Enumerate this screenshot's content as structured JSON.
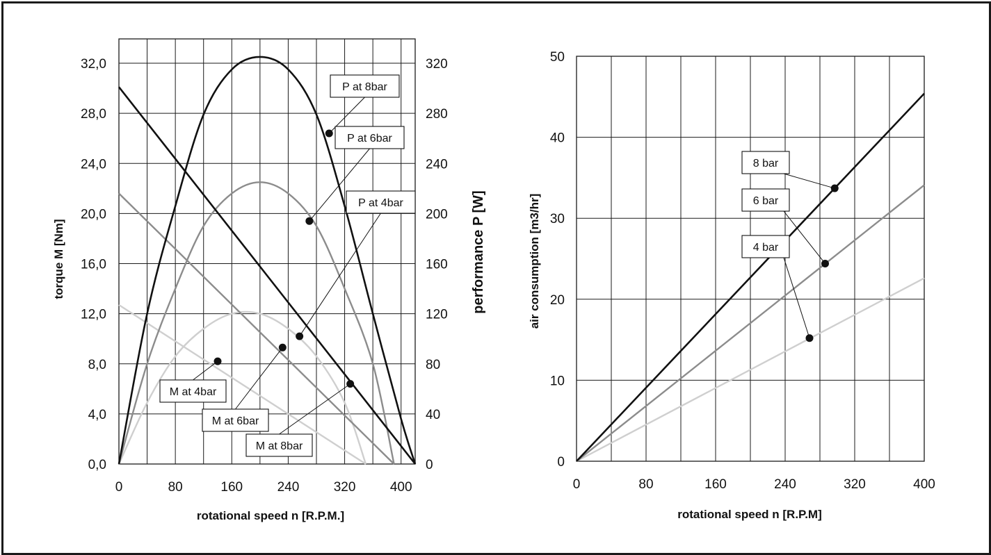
{
  "colors": {
    "black": "#111111",
    "mid_gray": "#8c8c8c",
    "light_gray": "#cfcfcf",
    "grid": "#1a1a1a"
  },
  "chart_data": [
    {
      "type": "line",
      "xlabel": "rotational speed n [R.P.M.]",
      "ylabel": "torque M [Nm]",
      "y2label": "performance P [W]",
      "xlim": [
        0,
        420
      ],
      "ylim": [
        0,
        32
      ],
      "y2lim": [
        0,
        320
      ],
      "x_ticks": [
        "0",
        "80",
        "160",
        "240",
        "320",
        "400"
      ],
      "y_ticks": [
        "0,0",
        "4,0",
        "8,0",
        "12,0",
        "16,0",
        "20,0",
        "24,0",
        "28,0",
        "32,0"
      ],
      "y2_ticks": [
        "0",
        "40",
        "80",
        "120",
        "160",
        "200",
        "240",
        "280",
        "320"
      ],
      "grid": true,
      "series": [
        {
          "name": "M at 8bar",
          "axis": "left",
          "color": "black",
          "x": [
            0,
            420
          ],
          "y": [
            30.1,
            0
          ]
        },
        {
          "name": "M at 6bar",
          "axis": "left",
          "color": "mid_gray",
          "x": [
            0,
            390
          ],
          "y": [
            21.6,
            0
          ]
        },
        {
          "name": "M at 4bar",
          "axis": "left",
          "color": "light_gray",
          "x": [
            0,
            350
          ],
          "y": [
            12.7,
            0
          ]
        },
        {
          "name": "P at 8bar",
          "axis": "right",
          "color": "black",
          "x": [
            0,
            40,
            80,
            120,
            160,
            200,
            240,
            280,
            320,
            360,
            400,
            420
          ],
          "y": [
            0,
            120,
            206,
            279,
            315,
            325,
            315,
            279,
            206,
            120,
            36,
            0
          ]
        },
        {
          "name": "P at 6bar",
          "axis": "right",
          "color": "mid_gray",
          "x": [
            0,
            40,
            80,
            120,
            160,
            200,
            240,
            280,
            320,
            360,
            390
          ],
          "y": [
            0,
            80,
            140,
            190,
            216,
            225,
            216,
            190,
            140,
            80,
            0
          ]
        },
        {
          "name": "P at 4bar",
          "axis": "right",
          "color": "light_gray",
          "x": [
            0,
            40,
            80,
            120,
            160,
            200,
            240,
            280,
            320,
            350
          ],
          "y": [
            0,
            49,
            86,
            108,
            120,
            120,
            108,
            86,
            49,
            0
          ]
        }
      ],
      "annotations": [
        {
          "text": "P at 8bar",
          "axis": "right",
          "point": [
            298,
            264
          ]
        },
        {
          "text": "P at 6bar",
          "axis": "right",
          "point": [
            270,
            194
          ]
        },
        {
          "text": "P at 4bar",
          "axis": "right",
          "point": [
            256,
            102
          ]
        },
        {
          "text": "M at 4bar",
          "axis": "left",
          "point": [
            140,
            8.2
          ]
        },
        {
          "text": "M at 6bar",
          "axis": "left",
          "point": [
            232,
            9.3
          ]
        },
        {
          "text": "M at 8bar",
          "axis": "left",
          "point": [
            328,
            6.4
          ]
        }
      ]
    },
    {
      "type": "line",
      "xlabel": "rotational speed n [R.P.M]",
      "ylabel": "air consumption [m3/hr]",
      "xlim": [
        0,
        400
      ],
      "ylim": [
        0,
        50
      ],
      "x_ticks": [
        "0",
        "80",
        "160",
        "240",
        "320",
        "400"
      ],
      "y_ticks": [
        "0",
        "10",
        "20",
        "30",
        "40",
        "50"
      ],
      "grid": true,
      "series": [
        {
          "name": "8 bar",
          "color": "black",
          "x": [
            0,
            400
          ],
          "y": [
            0,
            45.4
          ]
        },
        {
          "name": "6 bar",
          "color": "mid_gray",
          "x": [
            0,
            400
          ],
          "y": [
            0,
            34.1
          ]
        },
        {
          "name": "4 bar",
          "color": "light_gray",
          "x": [
            0,
            400
          ],
          "y": [
            0,
            22.6
          ]
        }
      ],
      "annotations": [
        {
          "text": "8 bar",
          "point": [
            297,
            33.7
          ]
        },
        {
          "text": "6 bar",
          "point": [
            286,
            24.4
          ]
        },
        {
          "text": "4 bar",
          "point": [
            268,
            15.2
          ]
        }
      ]
    }
  ]
}
